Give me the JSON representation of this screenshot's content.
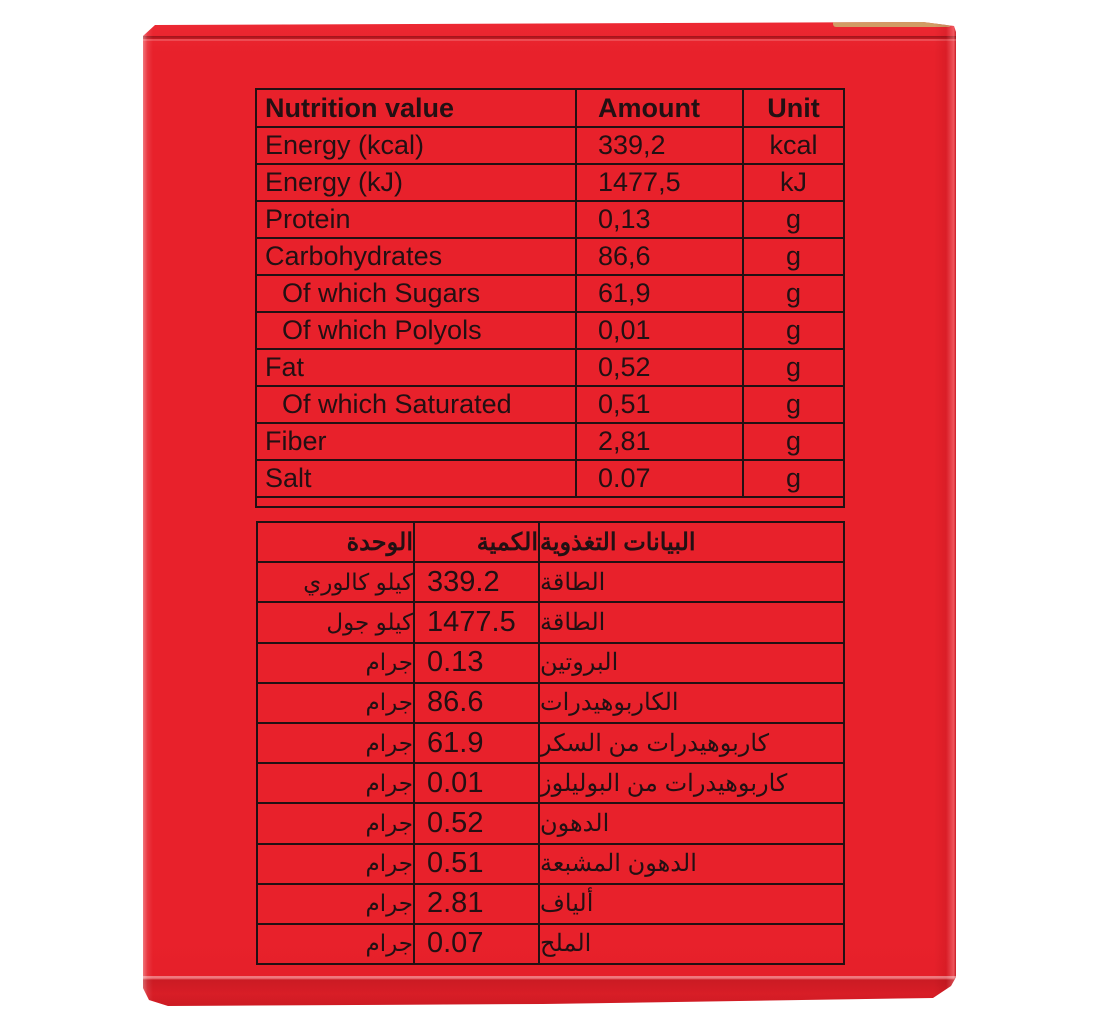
{
  "scene": {
    "background_color": "#ffffff",
    "box_color": "#e8212b",
    "ink_color": "#221013"
  },
  "english_table": {
    "headers": [
      "Nutrition value",
      "Amount",
      "Unit"
    ],
    "rows": [
      {
        "label": "Energy (kcal)",
        "amount": "339,2",
        "unit": "kcal"
      },
      {
        "label": "Energy (kJ)",
        "amount": "1477,5",
        "unit": "kJ"
      },
      {
        "label": "Protein",
        "amount": "0,13",
        "unit": "g"
      },
      {
        "label": "Carbohydrates",
        "amount": "86,6",
        "unit": "g"
      },
      {
        "label": "Of which Sugars",
        "amount": "61,9",
        "unit": "g"
      },
      {
        "label": "Of which Polyols",
        "amount": "0,01",
        "unit": "g"
      },
      {
        "label": "Fat",
        "amount": "0,52",
        "unit": "g"
      },
      {
        "label": "Of which Saturated",
        "amount": "0,51",
        "unit": "g"
      },
      {
        "label": "Fiber",
        "amount": "2,81",
        "unit": "g"
      },
      {
        "label": "Salt",
        "amount": "0.07",
        "unit": "g"
      }
    ]
  },
  "arabic_table": {
    "headers": {
      "unit": "الوحدة",
      "amount": "الكمية",
      "label": "البيانات التغذوية"
    },
    "rows": [
      {
        "unit": "كيلو كالوري",
        "amount": "339.2",
        "label": "الطاقة"
      },
      {
        "unit": "كيلو جول",
        "amount": "1477.5",
        "label": "الطاقة"
      },
      {
        "unit": "جرام",
        "amount": "0.13",
        "label": "البروتين"
      },
      {
        "unit": "جرام",
        "amount": "86.6",
        "label": "الكاربوهيدرات"
      },
      {
        "unit": "جرام",
        "amount": "61.9",
        "label": "كاربوهيدرات من السكر"
      },
      {
        "unit": "جرام",
        "amount": "0.01",
        "label": "كاربوهيدرات من البوليلوز"
      },
      {
        "unit": "جرام",
        "amount": "0.52",
        "label": "الدهون"
      },
      {
        "unit": "جرام",
        "amount": "0.51",
        "label": "الدهون المشبعة"
      },
      {
        "unit": "جرام",
        "amount": "2.81",
        "label": "ألياف"
      },
      {
        "unit": "جرام",
        "amount": "0.07",
        "label": "الملح"
      }
    ]
  }
}
